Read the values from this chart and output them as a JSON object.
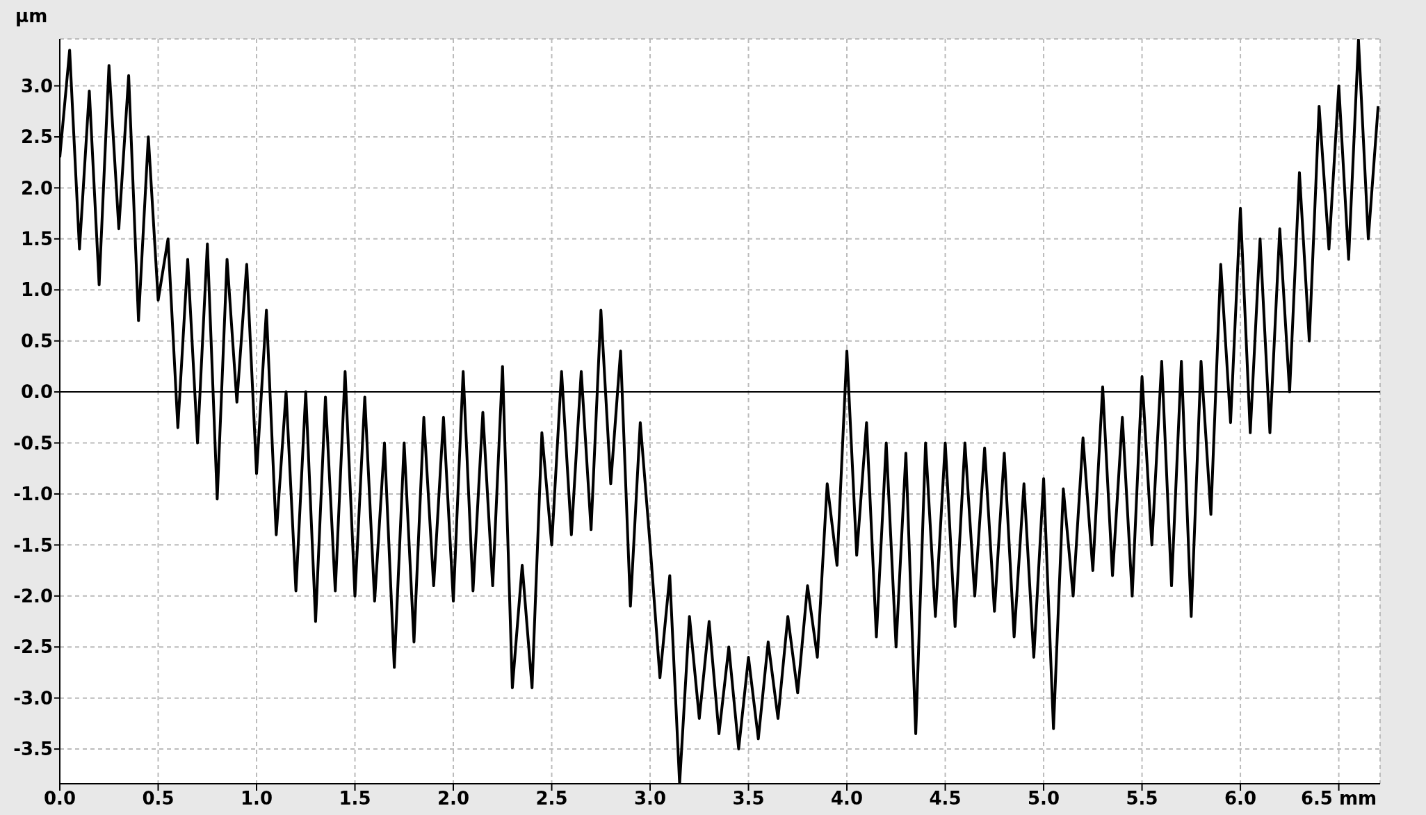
{
  "chart_data": {
    "type": "line",
    "ylabel": "µm",
    "x": [
      0,
      0.05,
      0.1,
      0.15,
      0.2,
      0.25,
      0.3,
      0.35,
      0.4,
      0.45,
      0.5,
      0.55,
      0.6,
      0.65,
      0.7,
      0.75,
      0.8,
      0.85,
      0.9,
      0.95,
      1,
      1.05,
      1.1,
      1.15,
      1.2,
      1.25,
      1.3,
      1.35,
      1.4,
      1.45,
      1.5,
      1.55,
      1.6,
      1.65,
      1.7,
      1.75,
      1.8,
      1.85,
      1.9,
      1.95,
      2,
      2.05,
      2.1,
      2.15,
      2.2,
      2.25,
      2.3,
      2.35,
      2.4,
      2.45,
      2.5,
      2.55,
      2.6,
      2.65,
      2.7,
      2.75,
      2.8,
      2.85,
      2.9,
      2.95,
      3,
      3.05,
      3.1,
      3.15,
      3.2,
      3.25,
      3.3,
      3.35,
      3.4,
      3.45,
      3.5,
      3.55,
      3.6,
      3.65,
      3.7,
      3.75,
      3.8,
      3.85,
      3.9,
      3.95,
      4,
      4.05,
      4.1,
      4.15,
      4.2,
      4.25,
      4.3,
      4.35,
      4.4,
      4.45,
      4.5,
      4.55,
      4.6,
      4.65,
      4.7,
      4.75,
      4.8,
      4.85,
      4.9,
      4.95,
      5,
      5.05,
      5.1,
      5.15,
      5.2,
      5.25,
      5.3,
      5.35,
      5.4,
      5.45,
      5.5,
      5.55,
      5.6,
      5.65,
      5.7,
      5.75,
      5.8,
      5.85,
      5.9,
      5.95,
      6,
      6.05,
      6.1,
      6.15,
      6.2,
      6.25,
      6.3,
      6.35,
      6.4,
      6.45,
      6.5,
      6.55,
      6.6,
      6.65,
      6.7
    ],
    "series": [
      {
        "color": "#000000",
        "values": [
          2.3,
          3.35,
          1.4,
          2.95,
          1.05,
          3.2,
          1.6,
          3.1,
          0.7,
          2.5,
          0.9,
          1.5,
          -0.35,
          1.3,
          -0.5,
          1.45,
          -1.05,
          1.3,
          -0.1,
          1.25,
          -0.8,
          0.8,
          -1.4,
          0,
          -1.95,
          0,
          -2.25,
          -0.05,
          -1.95,
          0.2,
          -2,
          -0.05,
          -2.05,
          -0.5,
          -2.7,
          -0.5,
          -2.45,
          -0.25,
          -1.9,
          -0.25,
          -2.05,
          0.2,
          -1.95,
          -0.2,
          -1.9,
          0.25,
          -2.9,
          -1.7,
          -2.9,
          -0.4,
          -1.5,
          0.2,
          -1.4,
          0.2,
          -1.35,
          0.8,
          -0.9,
          0.4,
          -2.1,
          -0.3,
          -1.5,
          -2.8,
          -1.8,
          -3.84,
          -2.2,
          -3.2,
          -2.25,
          -3.35,
          -2.5,
          -3.5,
          -2.6,
          -3.4,
          -2.45,
          -3.2,
          -2.2,
          -2.95,
          -1.9,
          -2.6,
          -0.9,
          -1.7,
          0.4,
          -1.6,
          -0.3,
          -2.4,
          -0.5,
          -2.5,
          -0.6,
          -3.35,
          -0.5,
          -2.2,
          -0.5,
          -2.3,
          -0.5,
          -2,
          -0.55,
          -2.15,
          -0.6,
          -2.4,
          -0.9,
          -2.6,
          -0.85,
          -3.3,
          -0.95,
          -2,
          -0.45,
          -1.75,
          0.05,
          -1.8,
          -0.25,
          -2,
          0.15,
          -1.5,
          0.3,
          -1.9,
          0.3,
          -2.2,
          0.3,
          -1.2,
          1.25,
          -0.3,
          1.8,
          -0.4,
          1.5,
          -0.4,
          1.6,
          0,
          2.15,
          0.5,
          2.8,
          1.4,
          3,
          1.3,
          3.45,
          1.5,
          2.8
        ]
      }
    ],
    "xlim": [
      0,
      6.71
    ],
    "ylim": [
      -3.84,
      3.46
    ],
    "xticks": [
      {
        "value": 0,
        "label": "0.0"
      },
      {
        "value": 0.5,
        "label": "0.5"
      },
      {
        "value": 1,
        "label": "1.0"
      },
      {
        "value": 1.5,
        "label": "1.5"
      },
      {
        "value": 2,
        "label": "2.0"
      },
      {
        "value": 2.5,
        "label": "2.5"
      },
      {
        "value": 3,
        "label": "3.0"
      },
      {
        "value": 3.5,
        "label": "3.5"
      },
      {
        "value": 4,
        "label": "4.0"
      },
      {
        "value": 4.5,
        "label": "4.5"
      },
      {
        "value": 5,
        "label": "5.0"
      },
      {
        "value": 5.5,
        "label": "5.5"
      },
      {
        "value": 6,
        "label": "6.0"
      },
      {
        "value": 6.5,
        "label": "6.5 mm"
      }
    ],
    "yticks": [
      {
        "value": -3.5,
        "label": "-3.5"
      },
      {
        "value": -3,
        "label": "-3.0"
      },
      {
        "value": -2.5,
        "label": "-2.5"
      },
      {
        "value": -2,
        "label": "-2.0"
      },
      {
        "value": -1.5,
        "label": "-1.5"
      },
      {
        "value": -1,
        "label": "-1.0"
      },
      {
        "value": -0.5,
        "label": "-0.5"
      },
      {
        "value": 0,
        "label": "0.0"
      },
      {
        "value": 0.5,
        "label": "0.5"
      },
      {
        "value": 1,
        "label": "1.0"
      },
      {
        "value": 1.5,
        "label": "1.5"
      },
      {
        "value": 2,
        "label": "2.0"
      },
      {
        "value": 2.5,
        "label": "2.5"
      },
      {
        "value": 3,
        "label": "3.0"
      }
    ],
    "ref_lines": [
      {
        "axis": "y",
        "value": 0,
        "color": "#000000"
      }
    ],
    "grid": true,
    "line_style": "solid"
  }
}
